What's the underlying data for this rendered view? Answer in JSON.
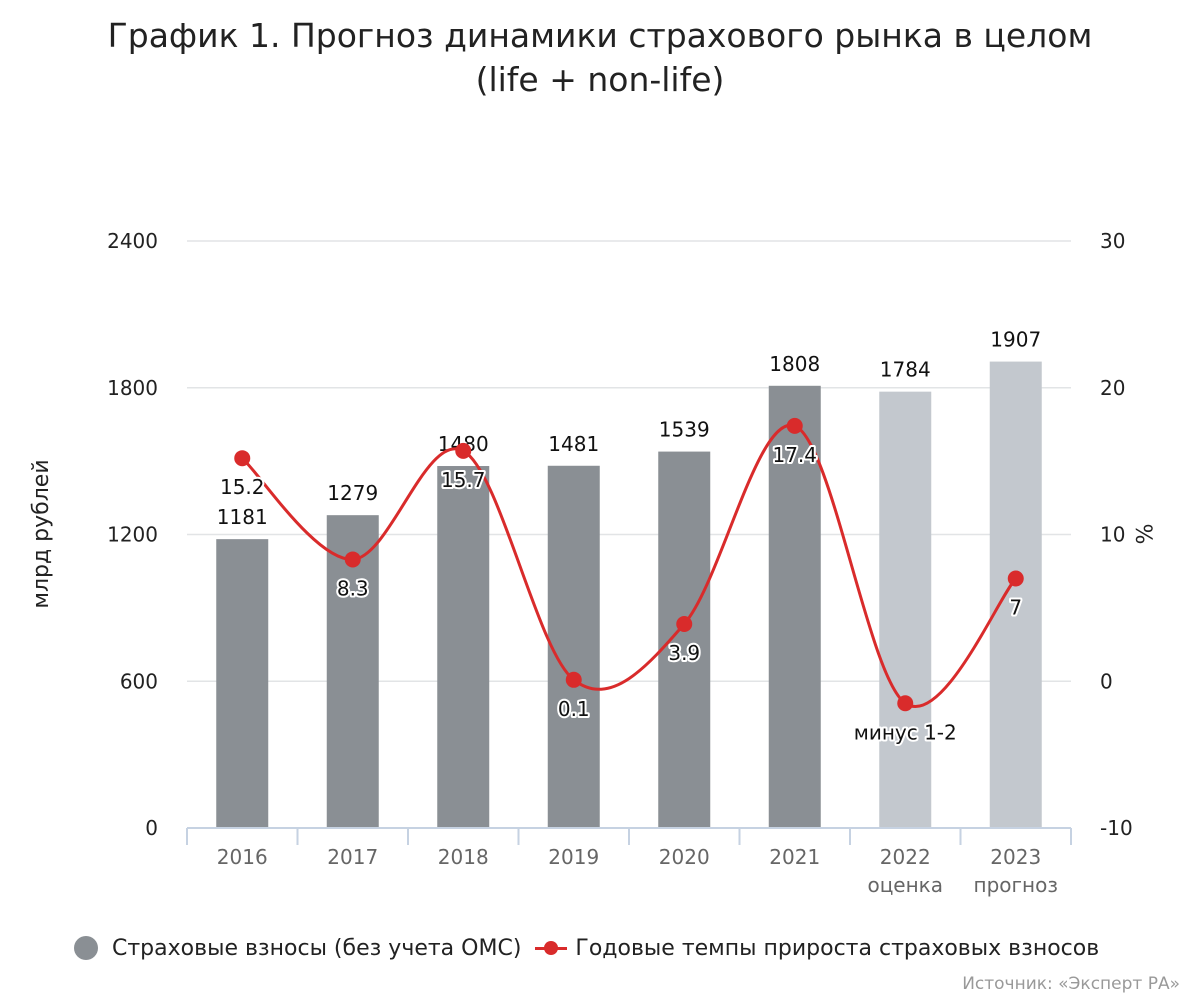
{
  "title_line1": "График 1. Прогноз динамики страхового рынка в целом",
  "title_line2": "(life + non-life)",
  "chart_data": {
    "type": "bar+line",
    "categories": [
      {
        "year": "2016",
        "sub": ""
      },
      {
        "year": "2017",
        "sub": ""
      },
      {
        "year": "2018",
        "sub": ""
      },
      {
        "year": "2019",
        "sub": ""
      },
      {
        "year": "2020",
        "sub": ""
      },
      {
        "year": "2021",
        "sub": ""
      },
      {
        "year": "2022",
        "sub": "оценка"
      },
      {
        "year": "2023",
        "sub": "прогноз"
      }
    ],
    "bar_series": {
      "name": "Страховые взносы (без учета ОМС)",
      "values": [
        1181,
        1279,
        1480,
        1481,
        1539,
        1808,
        1784,
        1907
      ],
      "labels": [
        "1181",
        "1279",
        "1480",
        "1481",
        "1539",
        "1808",
        "1784",
        "1907"
      ],
      "colors": [
        "#8a8f94",
        "#8a8f94",
        "#8a8f94",
        "#8a8f94",
        "#8a8f94",
        "#8a8f94",
        "#c3c8ce",
        "#c3c8ce"
      ]
    },
    "line_series": {
      "name": "Годовые темпы прироста страховых взносов",
      "values": [
        15.2,
        8.3,
        15.7,
        0.1,
        3.9,
        17.4,
        -1.5,
        7
      ],
      "labels": [
        "15.2",
        "8.3",
        "15.7",
        "0.1",
        "3.9",
        "17.4",
        "минус 1-2",
        "7"
      ],
      "color": "#d92b2b"
    },
    "y_left": {
      "label": "млрд рублей",
      "min": 0,
      "max": 2400,
      "ticks": [
        "0",
        "600",
        "1200",
        "1800",
        "2400"
      ]
    },
    "y_right": {
      "label": "%",
      "min": -10,
      "max": 30,
      "ticks": [
        "-10",
        "0",
        "10",
        "20",
        "30"
      ]
    },
    "gridlines": true,
    "legend_position": "bottom"
  },
  "legend": {
    "bars_label": "Страховые взносы (без учета ОМС)",
    "line_label": "Годовые темпы прироста страховых взносов"
  },
  "source": "Источник: «Эксперт РА»"
}
